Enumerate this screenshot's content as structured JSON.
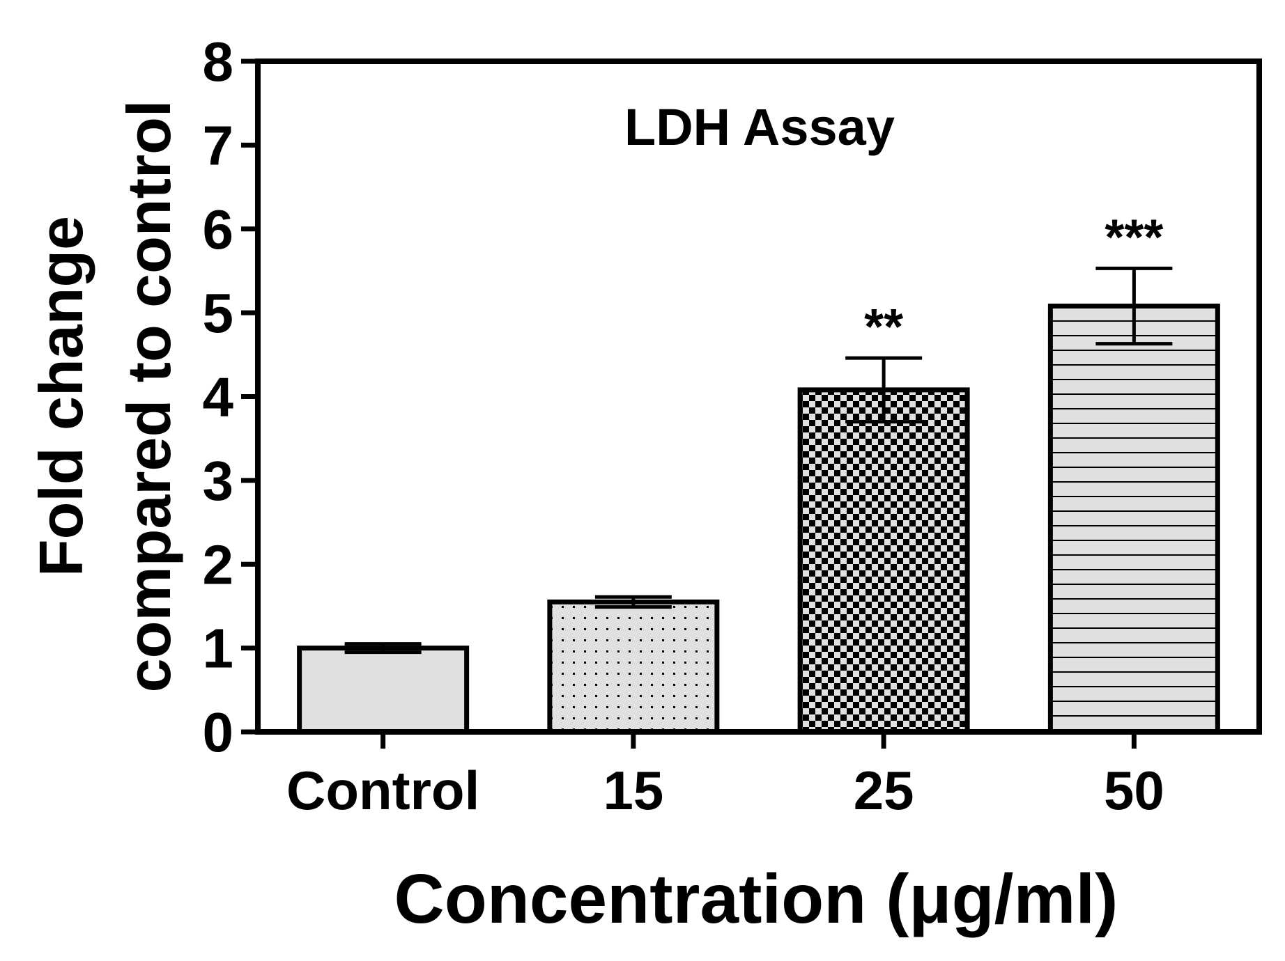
{
  "chart_data": {
    "type": "bar",
    "title": "LDH Assay",
    "xlabel": "Concentration (μg/ml)",
    "ylabel_line1": "Fold change",
    "ylabel_line2": "compared to control",
    "categories": [
      "Control",
      "15",
      "25",
      "50"
    ],
    "values": [
      1.0,
      1.55,
      4.08,
      5.08
    ],
    "errors": [
      0.05,
      0.06,
      0.38,
      0.45
    ],
    "significance": [
      "",
      "",
      "**",
      "***"
    ],
    "patterns": [
      "solid",
      "dots",
      "checker",
      "hlines"
    ],
    "ylim": [
      0,
      8
    ],
    "yticks": [
      "0",
      "1",
      "2",
      "3",
      "4",
      "5",
      "6",
      "7",
      "8"
    ],
    "grid": false,
    "colors": {
      "bar_fill": "#e0e0e0",
      "ink": "#000000",
      "background": "#ffffff"
    }
  }
}
